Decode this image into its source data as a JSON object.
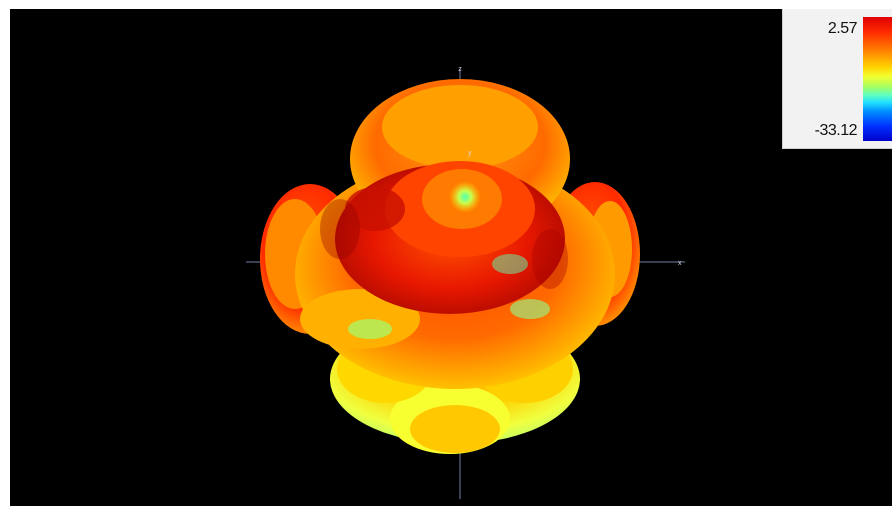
{
  "viewer": {
    "background": "#000000",
    "pattern": {
      "type": "3D radiation pattern",
      "colormap": [
        "#e00000",
        "#ff7a00",
        "#ffd000",
        "#f4ff30",
        "#60ffc0",
        "#20e0ff",
        "#0030ff",
        "#0000c8"
      ]
    },
    "axes": {
      "x_label": "x",
      "y_label": "y",
      "z_label": "z"
    }
  },
  "legend": {
    "max_label": "2.57",
    "min_label": "-33.12"
  }
}
